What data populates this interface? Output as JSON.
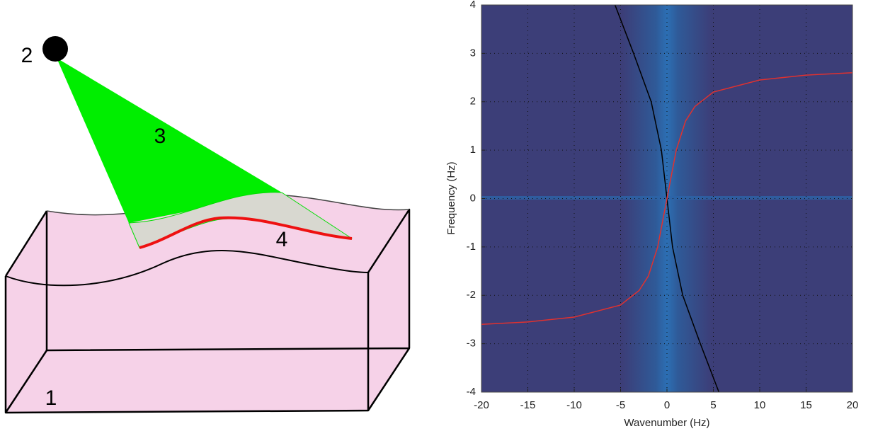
{
  "diagram": {
    "labels": [
      "1",
      "2",
      "3",
      "4"
    ]
  },
  "chart_data": {
    "type": "line",
    "xlabel": "Wavenumber (Hz)",
    "ylabel": "Frequency (Hz)",
    "xlim": [
      -20,
      20
    ],
    "ylim": [
      -4,
      4
    ],
    "xticks": [
      -20,
      -15,
      -10,
      -5,
      0,
      5,
      10,
      15,
      20
    ],
    "yticks": [
      -4,
      -3,
      -2,
      -1,
      0,
      1,
      2,
      3,
      4
    ],
    "grid": true,
    "series": [
      {
        "color": "#000000",
        "x": [
          -5.6,
          -3.6,
          -1.7,
          -0.6,
          0,
          0.6,
          1.7,
          3.6,
          5.6
        ],
        "values": [
          4,
          3,
          2,
          1,
          0,
          -1,
          -2,
          -3,
          -4
        ]
      },
      {
        "color": "#e0312f",
        "x": [
          -20,
          -15,
          -10,
          -5,
          -3,
          -2,
          -1,
          -0.5,
          0,
          0.5,
          1,
          2,
          3,
          5,
          10,
          15,
          20
        ],
        "values": [
          -2.6,
          -2.55,
          -2.45,
          -2.2,
          -1.9,
          -1.6,
          -1.0,
          -0.5,
          0,
          0.5,
          1.0,
          1.6,
          1.9,
          2.2,
          2.45,
          2.55,
          2.6
        ]
      }
    ]
  }
}
